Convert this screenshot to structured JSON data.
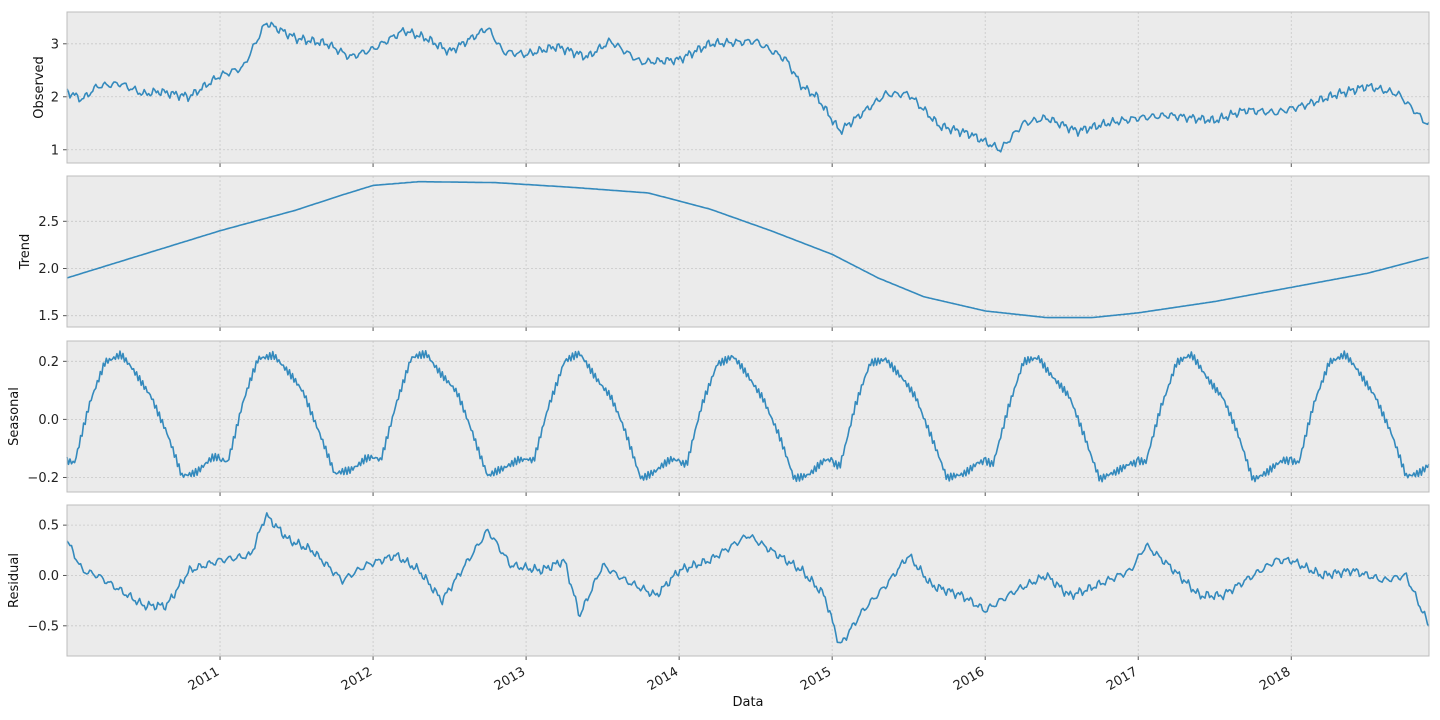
{
  "colors": {
    "line": "#348abd",
    "panel_bg": "#ebebeb",
    "grid": "#c8c8c8"
  },
  "chart_data": {
    "type": "line",
    "xlabel": "Data",
    "xlim": [
      2010.0,
      2018.9
    ],
    "x_ticks": [
      {
        "value": 2011,
        "label": "2011"
      },
      {
        "value": 2012,
        "label": "2012"
      },
      {
        "value": 2013,
        "label": "2013"
      },
      {
        "value": 2014,
        "label": "2014"
      },
      {
        "value": 2015,
        "label": "2015"
      },
      {
        "value": 2016,
        "label": "2016"
      },
      {
        "value": 2017,
        "label": "2017"
      },
      {
        "value": 2018,
        "label": "2018"
      }
    ],
    "panels": [
      {
        "ylabel": "Observed",
        "ylim": [
          0.75,
          3.6
        ],
        "yticks": [
          {
            "value": 1,
            "label": "1"
          },
          {
            "value": 2,
            "label": "2"
          },
          {
            "value": 3,
            "label": "3"
          }
        ],
        "x": [
          2010.0,
          2010.1,
          2010.2,
          2010.35,
          2010.5,
          2010.6,
          2010.8,
          2011.0,
          2011.15,
          2011.3,
          2011.5,
          2011.7,
          2011.85,
          2012.0,
          2012.2,
          2012.35,
          2012.5,
          2012.75,
          2012.85,
          2013.0,
          2013.2,
          2013.4,
          2013.55,
          2013.75,
          2014.0,
          2014.2,
          2014.5,
          2014.7,
          2014.8,
          2014.9,
          2015.05,
          2015.2,
          2015.35,
          2015.5,
          2015.7,
          2015.9,
          2016.1,
          2016.25,
          2016.4,
          2016.6,
          2016.8,
          2017.0,
          2017.2,
          2017.5,
          2017.7,
          2017.9,
          2018.1,
          2018.3,
          2018.5,
          2018.7,
          2018.9
        ],
        "values": [
          2.1,
          1.95,
          2.2,
          2.25,
          2.05,
          2.1,
          2.0,
          2.4,
          2.55,
          3.4,
          3.1,
          3.0,
          2.75,
          2.9,
          3.25,
          3.1,
          2.85,
          3.3,
          2.85,
          2.8,
          2.95,
          2.75,
          3.05,
          2.65,
          2.7,
          3.0,
          3.05,
          2.7,
          2.2,
          2.0,
          1.35,
          1.7,
          2.05,
          2.05,
          1.45,
          1.3,
          1.0,
          1.5,
          1.6,
          1.35,
          1.5,
          1.6,
          1.65,
          1.55,
          1.75,
          1.7,
          1.85,
          2.05,
          2.2,
          2.05,
          1.45
        ]
      },
      {
        "ylabel": "Trend",
        "ylim": [
          1.38,
          2.98
        ],
        "yticks": [
          {
            "value": 1.5,
            "label": "1.5"
          },
          {
            "value": 2.0,
            "label": "2.0"
          },
          {
            "value": 2.5,
            "label": "2.5"
          }
        ],
        "x": [
          2010.0,
          2010.5,
          2011.0,
          2011.5,
          2011.8,
          2012.0,
          2012.3,
          2012.8,
          2013.3,
          2013.8,
          2014.2,
          2014.6,
          2015.0,
          2015.3,
          2015.6,
          2016.0,
          2016.4,
          2016.7,
          2017.0,
          2017.5,
          2018.0,
          2018.5,
          2018.9
        ],
        "values": [
          1.9,
          2.15,
          2.4,
          2.62,
          2.78,
          2.88,
          2.92,
          2.91,
          2.86,
          2.8,
          2.63,
          2.4,
          2.15,
          1.9,
          1.7,
          1.55,
          1.48,
          1.48,
          1.53,
          1.65,
          1.8,
          1.95,
          2.12
        ]
      },
      {
        "ylabel": "Seasonal",
        "ylim": [
          -0.25,
          0.27
        ],
        "yticks": [
          {
            "value": -0.2,
            "label": "−0.2"
          },
          {
            "value": 0.0,
            "label": "0.0"
          },
          {
            "value": 0.2,
            "label": "0.2"
          }
        ],
        "x": [
          2010.0,
          2010.05,
          2010.15,
          2010.25,
          2010.35,
          2010.45,
          2010.55,
          2010.65,
          2010.75,
          2010.85,
          2010.95
        ],
        "values": [
          -0.14,
          -0.15,
          0.05,
          0.2,
          0.22,
          0.15,
          0.08,
          -0.05,
          -0.2,
          -0.18,
          -0.14
        ],
        "period": 1.0
      },
      {
        "ylabel": "Residual",
        "ylim": [
          -0.8,
          0.7
        ],
        "yticks": [
          {
            "value": -0.5,
            "label": "−0.5"
          },
          {
            "value": 0.0,
            "label": "0.0"
          },
          {
            "value": 0.5,
            "label": "0.5"
          }
        ],
        "x": [
          2010.0,
          2010.1,
          2010.2,
          2010.35,
          2010.5,
          2010.65,
          2010.8,
          2011.0,
          2011.2,
          2011.3,
          2011.45,
          2011.6,
          2011.8,
          2011.95,
          2012.15,
          2012.3,
          2012.45,
          2012.6,
          2012.75,
          2012.9,
          2013.1,
          2013.25,
          2013.35,
          2013.5,
          2013.65,
          2013.85,
          2014.0,
          2014.2,
          2014.45,
          2014.65,
          2014.8,
          2014.95,
          2015.05,
          2015.2,
          2015.35,
          2015.5,
          2015.65,
          2015.85,
          2016.0,
          2016.2,
          2016.4,
          2016.55,
          2016.65,
          2016.8,
          2016.95,
          2017.05,
          2017.2,
          2017.4,
          2017.55,
          2017.7,
          2017.9,
          2018.0,
          2018.2,
          2018.4,
          2018.6,
          2018.75,
          2018.9
        ],
        "values": [
          0.35,
          0.05,
          0.0,
          -0.15,
          -0.3,
          -0.3,
          0.05,
          0.15,
          0.2,
          0.6,
          0.35,
          0.25,
          -0.05,
          0.1,
          0.2,
          0.05,
          -0.25,
          0.1,
          0.45,
          0.1,
          0.05,
          0.15,
          -0.4,
          0.1,
          -0.05,
          -0.2,
          0.05,
          0.15,
          0.4,
          0.2,
          0.05,
          -0.2,
          -0.7,
          -0.35,
          -0.1,
          0.2,
          -0.1,
          -0.2,
          -0.35,
          -0.15,
          0.0,
          -0.2,
          -0.15,
          -0.05,
          0.05,
          0.3,
          0.1,
          -0.2,
          -0.2,
          -0.05,
          0.15,
          0.15,
          0.0,
          0.05,
          -0.05,
          0.0,
          -0.5
        ]
      }
    ]
  }
}
